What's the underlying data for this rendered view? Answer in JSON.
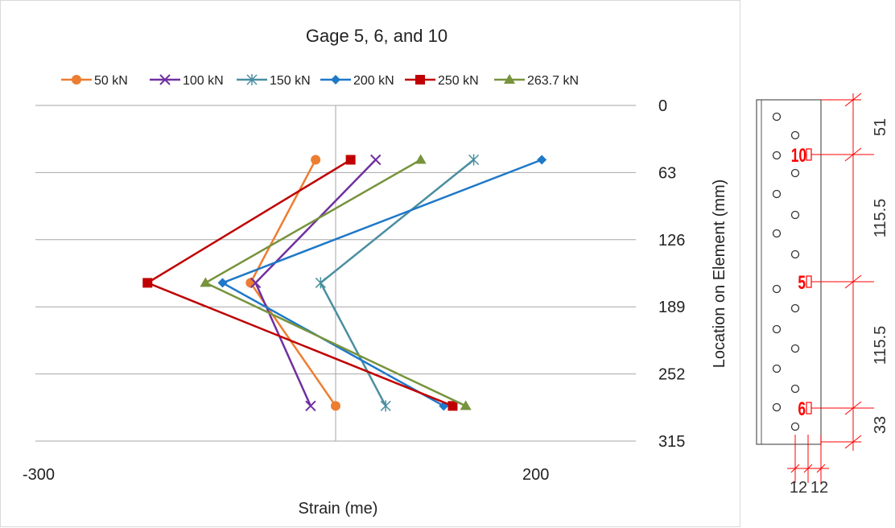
{
  "chart_data": {
    "type": "line",
    "title": "Gage 5, 6, and  10",
    "xlabel": "Strain (me)",
    "ylabel": "Location on Element (mm)",
    "xlim": [
      -300,
      300
    ],
    "ylim": [
      0,
      315
    ],
    "y_reversed": true,
    "y_axis_side": "right",
    "x_tick_labels": [
      "-300",
      "200"
    ],
    "x_tick_values": [
      -300,
      200
    ],
    "y_ticks": [
      0,
      63,
      126,
      189,
      252,
      315
    ],
    "grid": "horizontal",
    "legend_position": "top",
    "series": [
      {
        "name": "50 kN",
        "color": "#ED7D31",
        "marker": "circle",
        "points": [
          {
            "x": -20,
            "y": 51
          },
          {
            "x": -85,
            "y": 166.5
          },
          {
            "x": 0,
            "y": 282
          }
        ]
      },
      {
        "name": "100 kN",
        "color": "#7030A0",
        "marker": "x",
        "points": [
          {
            "x": 40,
            "y": 51
          },
          {
            "x": -80,
            "y": 166.5
          },
          {
            "x": -25,
            "y": 282
          }
        ]
      },
      {
        "name": "150 kN",
        "color": "#4A8EA0",
        "marker": "star",
        "points": [
          {
            "x": 138,
            "y": 51
          },
          {
            "x": -15,
            "y": 166.5
          },
          {
            "x": 50,
            "y": 282
          }
        ]
      },
      {
        "name": "200 kN",
        "color": "#1F78C8",
        "marker": "diamond",
        "points": [
          {
            "x": 206,
            "y": 51
          },
          {
            "x": -113,
            "y": 166.5
          },
          {
            "x": 108,
            "y": 282
          }
        ]
      },
      {
        "name": "250 kN",
        "color": "#C00000",
        "marker": "square",
        "points": [
          {
            "x": 15,
            "y": 51
          },
          {
            "x": -188,
            "y": 166.5
          },
          {
            "x": 117,
            "y": 282
          }
        ]
      },
      {
        "name": "263.7 kN",
        "color": "#77933C",
        "marker": "triangle",
        "points": [
          {
            "x": 85,
            "y": 51
          },
          {
            "x": -130,
            "y": 166.5
          },
          {
            "x": 130,
            "y": 282
          }
        ]
      }
    ]
  },
  "detail": {
    "gage_labels": [
      "10",
      "5",
      "6"
    ],
    "dimension_labels": [
      "51",
      "115.5",
      "115.5",
      "33"
    ],
    "bottom_labels": [
      "12",
      "12"
    ],
    "accent_color": "#FF0000"
  }
}
